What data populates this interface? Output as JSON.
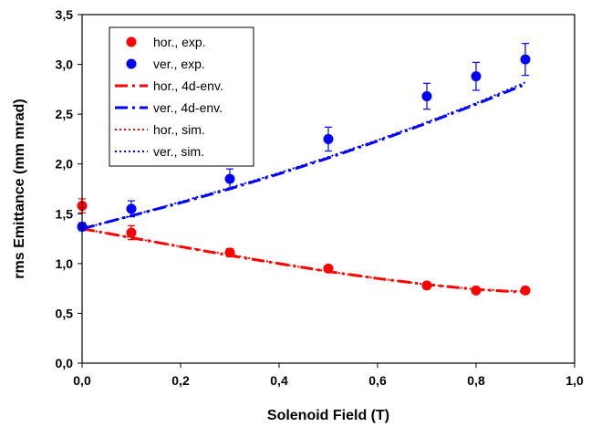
{
  "chart_data": {
    "type": "scatter",
    "title": "",
    "xlabel": "Solenoid Field (T)",
    "ylabel": "rms Emittance (mm mrad)",
    "xlim": [
      0,
      1.0
    ],
    "ylim": [
      0,
      3.5
    ],
    "x_ticks": [
      0,
      0.2,
      0.4,
      0.6,
      0.8,
      1.0
    ],
    "x_tick_labels": [
      "0,0",
      "0,2",
      "0,4",
      "0,6",
      "0,8",
      "1,0"
    ],
    "y_ticks": [
      0,
      0.5,
      1.0,
      1.5,
      2.0,
      2.5,
      3.0,
      3.5
    ],
    "y_tick_labels": [
      "0,0",
      "0,5",
      "1,0",
      "1,5",
      "2,0",
      "2,5",
      "3,0",
      "3,5"
    ],
    "grid": false,
    "legend_position": "top-left",
    "series": [
      {
        "name": "hor., exp.",
        "kind": "markers",
        "color": "#ff0000",
        "x": [
          0,
          0.1,
          0.3,
          0.5,
          0.7,
          0.8,
          0.9
        ],
        "y": [
          1.58,
          1.31,
          1.11,
          0.95,
          0.78,
          0.73,
          0.73
        ],
        "err": [
          0.07,
          0.07,
          0.04,
          0.03,
          0.02,
          0.02,
          0.02
        ]
      },
      {
        "name": "ver., exp.",
        "kind": "markers",
        "color": "#0000ff",
        "x": [
          0,
          0.1,
          0.3,
          0.5,
          0.7,
          0.8,
          0.9
        ],
        "y": [
          1.37,
          1.55,
          1.85,
          2.25,
          2.68,
          2.88,
          3.05
        ],
        "err": [
          0.04,
          0.08,
          0.1,
          0.12,
          0.13,
          0.14,
          0.16
        ]
      },
      {
        "name": "hor., 4d-env.",
        "kind": "dashdot",
        "color": "#ff0000",
        "x": [
          0,
          0.1,
          0.2,
          0.3,
          0.4,
          0.5,
          0.6,
          0.7,
          0.8,
          0.9
        ],
        "y": [
          1.35,
          1.26,
          1.17,
          1.08,
          1.0,
          0.92,
          0.85,
          0.79,
          0.74,
          0.71
        ]
      },
      {
        "name": "ver., 4d-env.",
        "kind": "dashdot",
        "color": "#0000ff",
        "x": [
          0,
          0.1,
          0.2,
          0.3,
          0.4,
          0.5,
          0.6,
          0.7,
          0.8,
          0.9
        ],
        "y": [
          1.35,
          1.48,
          1.61,
          1.75,
          1.9,
          2.06,
          2.23,
          2.41,
          2.6,
          2.8
        ]
      },
      {
        "name": "hor., sim.",
        "kind": "dotted",
        "color": "#ff0000",
        "x": [
          0,
          0.1,
          0.2,
          0.3,
          0.4,
          0.5,
          0.6,
          0.7,
          0.8,
          0.9
        ],
        "y": [
          1.35,
          1.26,
          1.17,
          1.09,
          1.0,
          0.92,
          0.85,
          0.79,
          0.74,
          0.72
        ]
      },
      {
        "name": "ver., sim.",
        "kind": "dotted",
        "color": "#0000ff",
        "x": [
          0,
          0.1,
          0.2,
          0.3,
          0.4,
          0.5,
          0.6,
          0.7,
          0.8,
          0.9
        ],
        "y": [
          1.35,
          1.48,
          1.62,
          1.76,
          1.91,
          2.07,
          2.24,
          2.42,
          2.61,
          2.82
        ]
      }
    ]
  }
}
